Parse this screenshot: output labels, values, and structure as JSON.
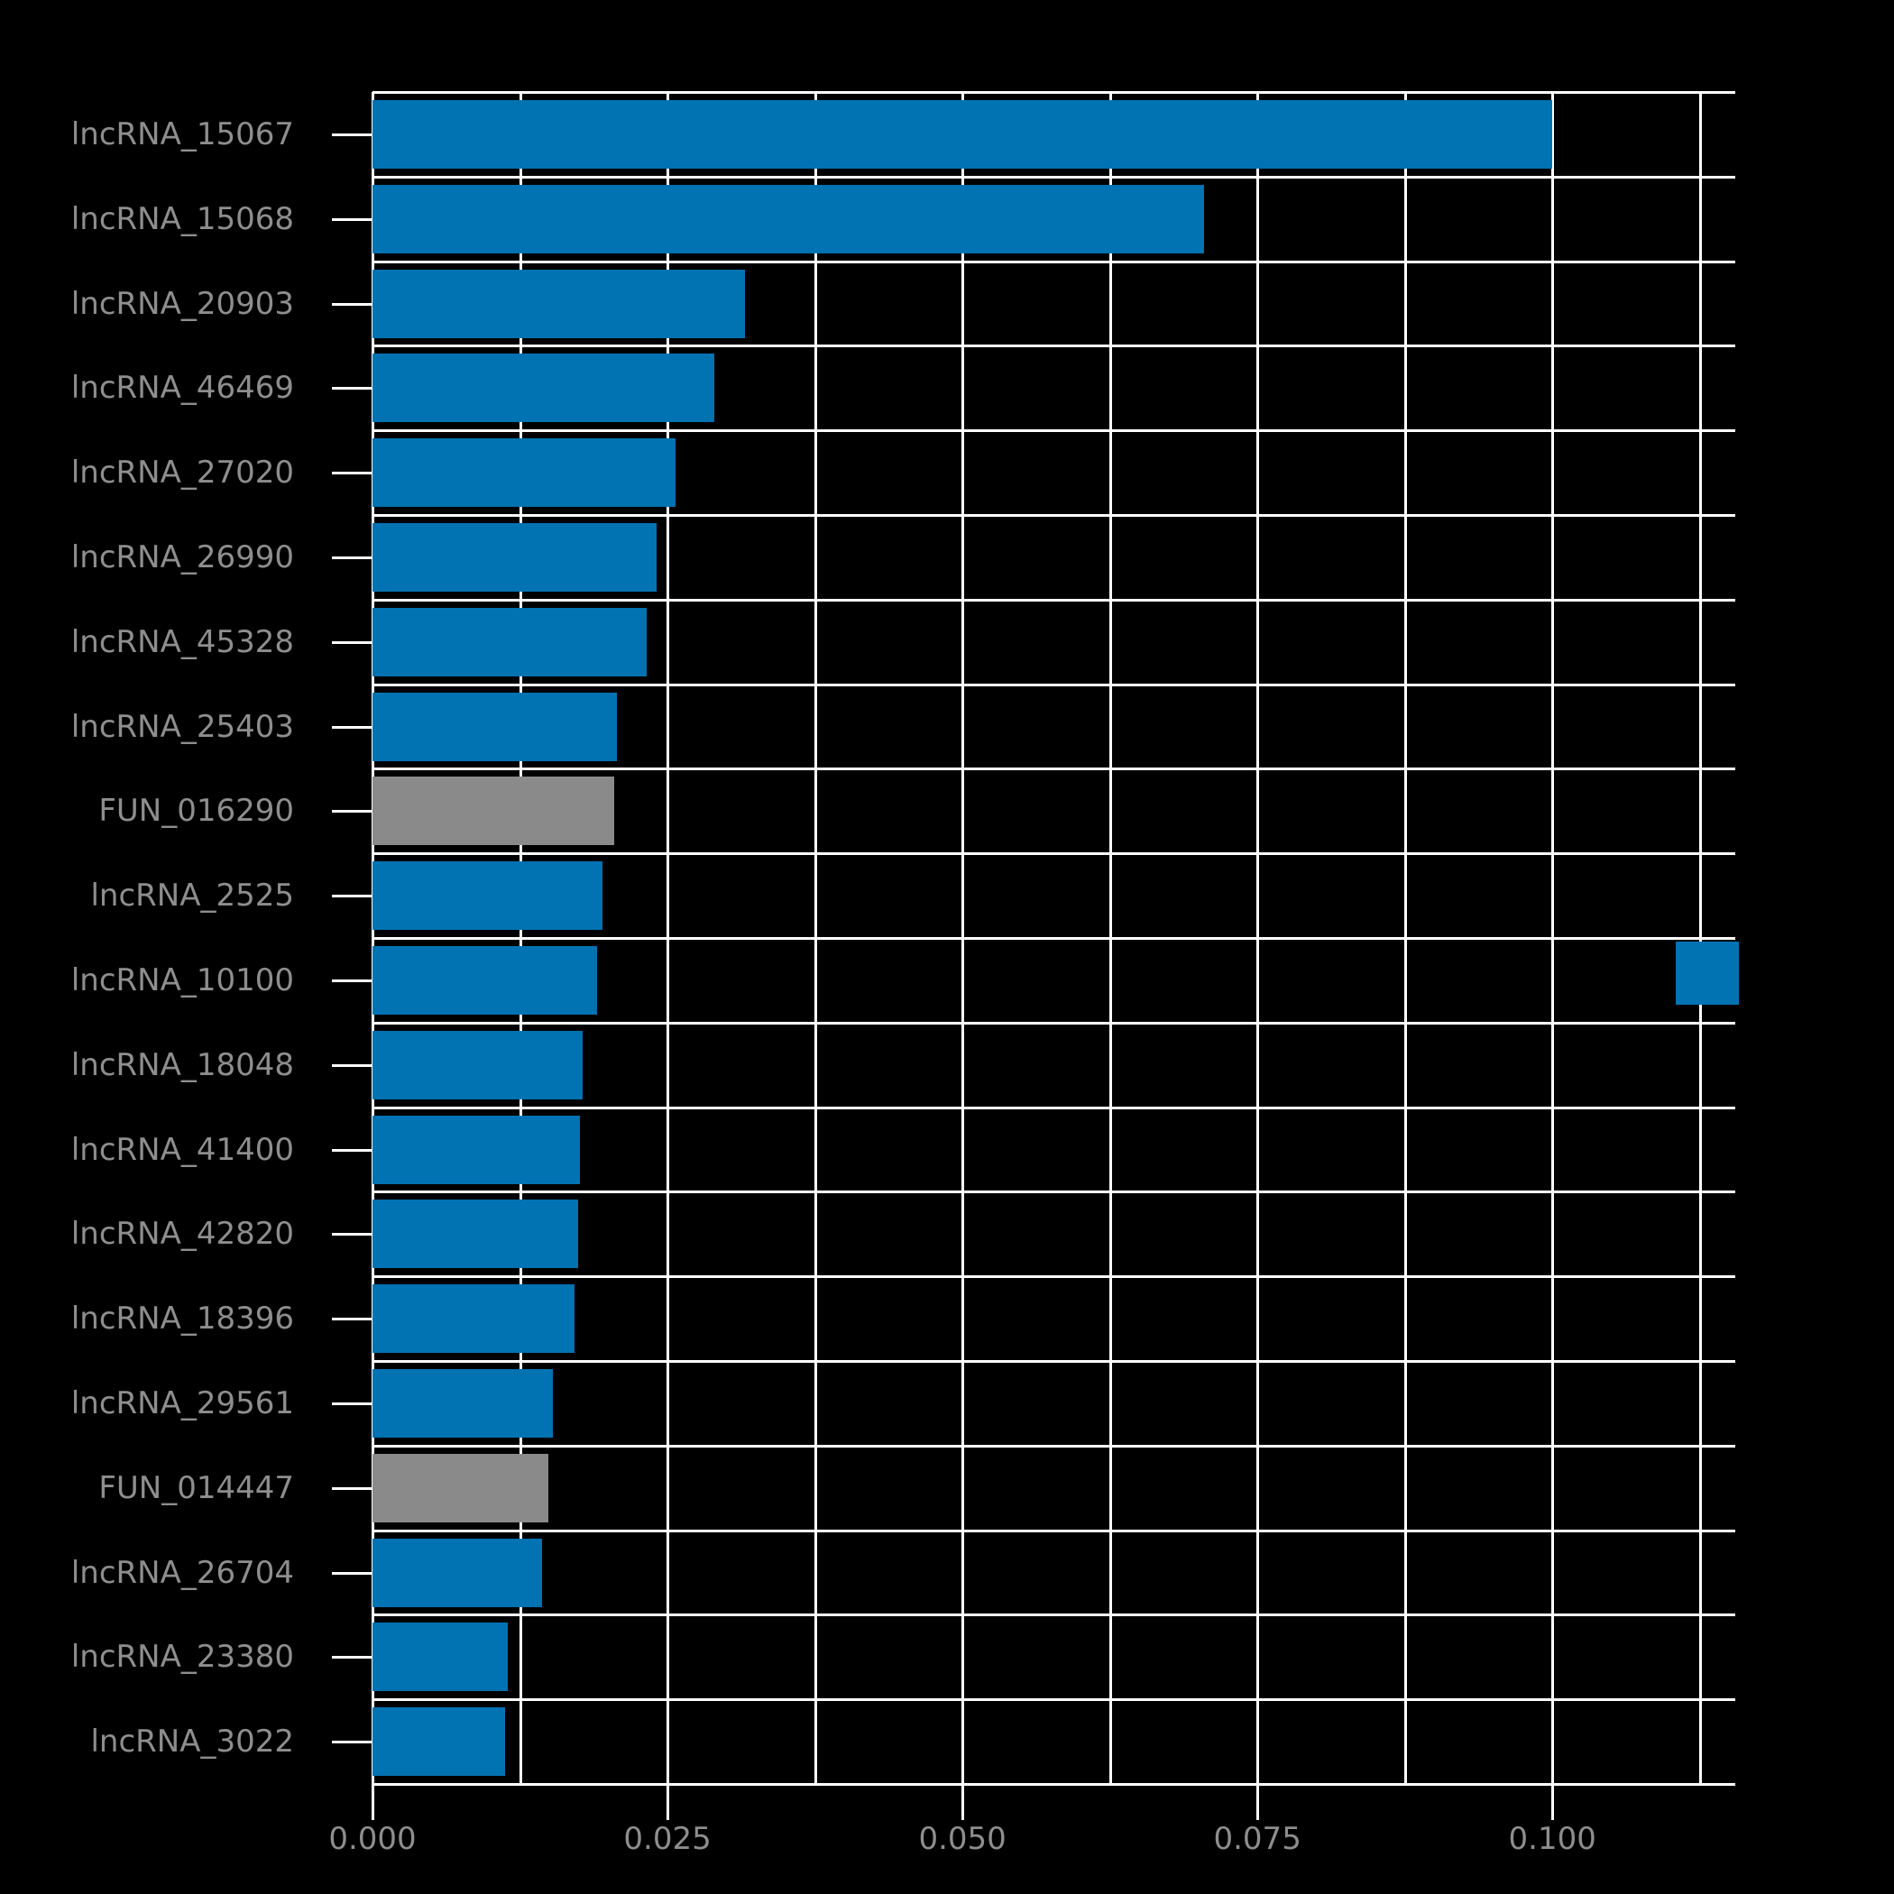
{
  "figure": {
    "background_color": "#000000",
    "grid_color": "#ffffff",
    "tick_color": "#ffffff",
    "axis_label_color": "#8e8e8e",
    "bar_color_blue": "#0173b2",
    "bar_color_gray": "#8a8a8a"
  },
  "chart_data": {
    "type": "bar",
    "orientation": "horizontal",
    "title": "",
    "xlabel": "",
    "ylabel": "",
    "grid": true,
    "xlim": [
      0,
      0.1155
    ],
    "x_minor_grid_step": 0.0125,
    "x_major_ticks": [
      0,
      0.025,
      0.05,
      0.075,
      0.1
    ],
    "x_tick_labels": [
      "0.000",
      "0.025",
      "0.050",
      "0.075",
      "0.100"
    ],
    "legend": {
      "position": "right",
      "label": "",
      "swatch_color": "#0173b2"
    },
    "bars": [
      {
        "label": "lncRNA_15067",
        "value": 0.1,
        "color": "#0173b2"
      },
      {
        "label": "lncRNA_15068",
        "value": 0.0705,
        "color": "#0173b2"
      },
      {
        "label": "lncRNA_20903",
        "value": 0.0316,
        "color": "#0173b2"
      },
      {
        "label": "lncRNA_46469",
        "value": 0.029,
        "color": "#0173b2"
      },
      {
        "label": "lncRNA_27020",
        "value": 0.0257,
        "color": "#0173b2"
      },
      {
        "label": "lncRNA_26990",
        "value": 0.0241,
        "color": "#0173b2"
      },
      {
        "label": "lncRNA_45328",
        "value": 0.0232,
        "color": "#0173b2"
      },
      {
        "label": "lncRNA_25403",
        "value": 0.0207,
        "color": "#0173b2"
      },
      {
        "label": "FUN_016290",
        "value": 0.0205,
        "color": "#8a8a8a"
      },
      {
        "label": "lncRNA_2525",
        "value": 0.0195,
        "color": "#0173b2"
      },
      {
        "label": "lncRNA_10100",
        "value": 0.019,
        "color": "#0173b2"
      },
      {
        "label": "lncRNA_18048",
        "value": 0.0178,
        "color": "#0173b2"
      },
      {
        "label": "lncRNA_41400",
        "value": 0.0176,
        "color": "#0173b2"
      },
      {
        "label": "lncRNA_42820",
        "value": 0.0174,
        "color": "#0173b2"
      },
      {
        "label": "lncRNA_18396",
        "value": 0.0171,
        "color": "#0173b2"
      },
      {
        "label": "lncRNA_29561",
        "value": 0.0153,
        "color": "#0173b2"
      },
      {
        "label": "FUN_014447",
        "value": 0.0149,
        "color": "#8a8a8a"
      },
      {
        "label": "lncRNA_26704",
        "value": 0.0144,
        "color": "#0173b2"
      },
      {
        "label": "lncRNA_23380",
        "value": 0.0115,
        "color": "#0173b2"
      },
      {
        "label": "lncRNA_3022",
        "value": 0.0112,
        "color": "#0173b2"
      }
    ]
  }
}
